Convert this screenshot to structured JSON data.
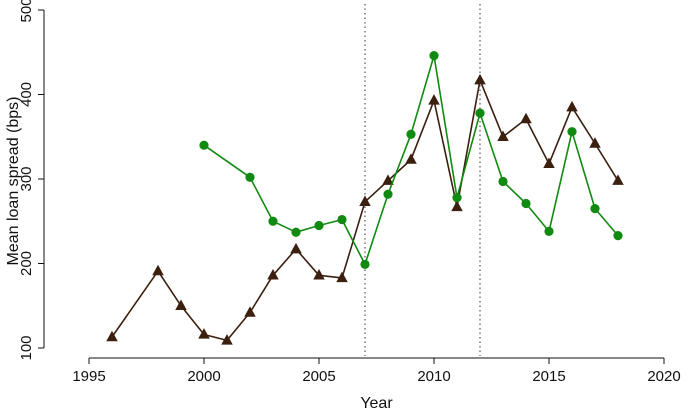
{
  "chart_data": {
    "type": "line",
    "xlabel": "Year",
    "ylabel": "Mean loan spread (bps)",
    "xlim": [
      1995,
      2020
    ],
    "ylim": [
      100,
      500
    ],
    "xticks": [
      1995,
      2000,
      2005,
      2010,
      2015,
      2020
    ],
    "yticks": [
      100,
      200,
      300,
      400,
      500
    ],
    "grid": false,
    "reference_lines_x": [
      2007,
      2012
    ],
    "series": [
      {
        "marker": "triangle",
        "color": "#3b1f0f",
        "x": [
          1996,
          1998,
          1999,
          2000,
          2001,
          2002,
          2003,
          2004,
          2005,
          2006,
          2007,
          2008,
          2009,
          2010,
          2011,
          2012,
          2013,
          2014,
          2015,
          2016,
          2017,
          2018
        ],
        "values": [
          113,
          191,
          150,
          116,
          109,
          142,
          186,
          217,
          186,
          183,
          273,
          298,
          323,
          393,
          267,
          417,
          350,
          371,
          318,
          385,
          342,
          298
        ]
      },
      {
        "marker": "circle",
        "color": "#118a11",
        "x": [
          2000,
          2002,
          2003,
          2004,
          2005,
          2006,
          2007,
          2008,
          2009,
          2010,
          2011,
          2012,
          2013,
          2014,
          2015,
          2016,
          2017,
          2018
        ],
        "values": [
          340,
          302,
          250,
          237,
          245,
          252,
          199,
          282,
          353,
          446,
          278,
          378,
          297,
          271,
          238,
          356,
          265,
          233
        ]
      }
    ]
  }
}
